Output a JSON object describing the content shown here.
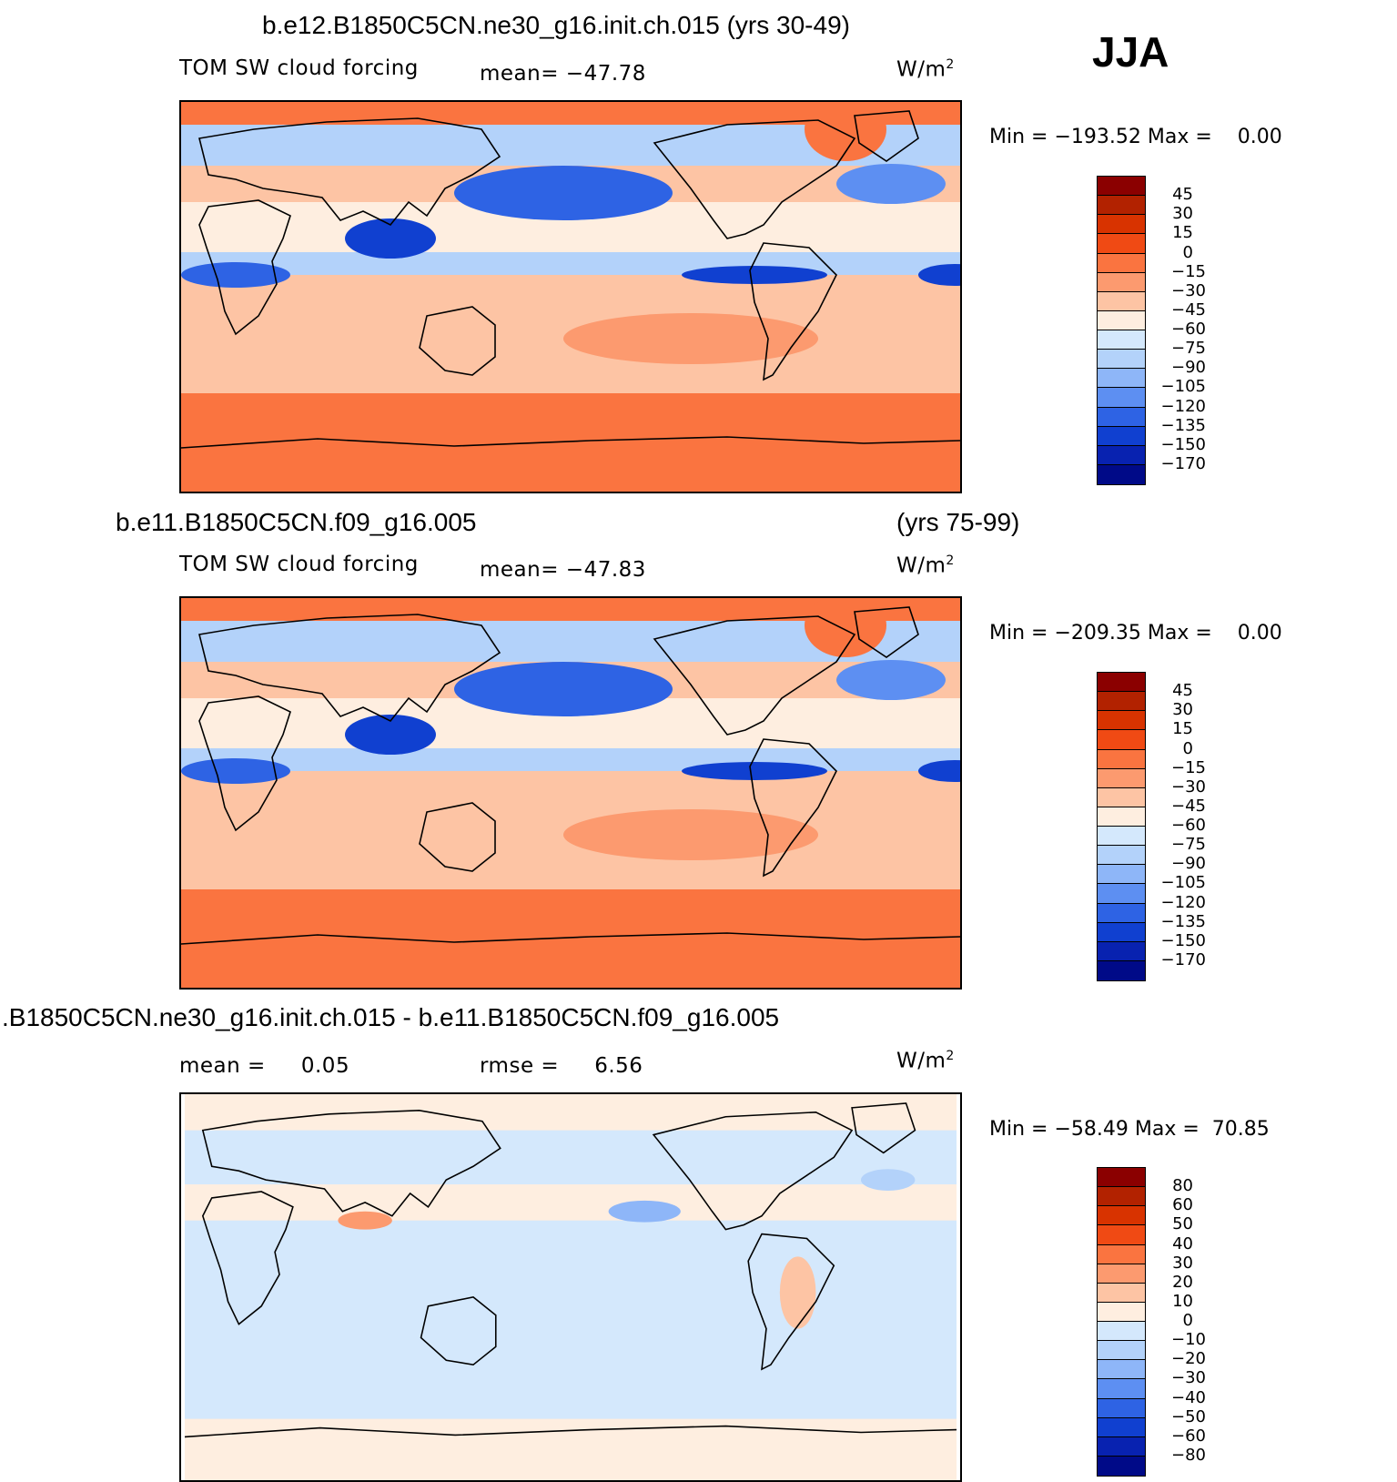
{
  "season": "JJA",
  "panels": [
    {
      "title": "b.e12.B1850C5CN.ne30_g16.init.ch.015 (yrs 30-49)",
      "title_right": "",
      "left_label": "TOM SW cloud forcing",
      "center_label": "mean= −47.78",
      "units": "W/m",
      "units_sup": "2",
      "minmax": "Min = −193.52 Max =    0.00",
      "colorbar": {
        "labels": [
          "45",
          "30",
          "15",
          "0",
          "−15",
          "−30",
          "−45",
          "−60",
          "−75",
          "−90",
          "−105",
          "−120",
          "−135",
          "−150",
          "−170"
        ],
        "colors": [
          "#8b0000",
          "#b22200",
          "#d83300",
          "#f04a14",
          "#fa7440",
          "#fc9a6f",
          "#fdc4a4",
          "#feeee0",
          "#d4e8fc",
          "#b3d2fa",
          "#8eb6f8",
          "#5d8ff2",
          "#2e63e4",
          "#1040d0",
          "#0822b0",
          "#000a88"
        ]
      },
      "map_style": "abs"
    },
    {
      "title": "b.e11.B1850C5CN.f09_g16.005",
      "title_right": "(yrs 75-99)",
      "left_label": "TOM SW cloud forcing",
      "center_label": "mean= −47.83",
      "units": "W/m",
      "units_sup": "2",
      "minmax": "Min = −209.35 Max =    0.00",
      "colorbar": {
        "labels": [
          "45",
          "30",
          "15",
          "0",
          "−15",
          "−30",
          "−45",
          "−60",
          "−75",
          "−90",
          "−105",
          "−120",
          "−135",
          "−150",
          "−170"
        ],
        "colors": [
          "#8b0000",
          "#b22200",
          "#d83300",
          "#f04a14",
          "#fa7440",
          "#fc9a6f",
          "#fdc4a4",
          "#feeee0",
          "#d4e8fc",
          "#b3d2fa",
          "#8eb6f8",
          "#5d8ff2",
          "#2e63e4",
          "#1040d0",
          "#0822b0",
          "#000a88"
        ]
      },
      "map_style": "abs"
    },
    {
      "title": ".B1850C5CN.ne30_g16.init.ch.015 - b.e11.B1850C5CN.f09_g16.005",
      "title_right": "",
      "left_label": "mean =     0.05",
      "center_label": "rmse =     6.56",
      "units": "W/m",
      "units_sup": "2",
      "minmax": "Min = −58.49 Max =  70.85",
      "colorbar": {
        "labels": [
          "80",
          "60",
          "50",
          "40",
          "30",
          "20",
          "10",
          "0",
          "−10",
          "−20",
          "−30",
          "−40",
          "−50",
          "−60",
          "−80"
        ],
        "colors": [
          "#8b0000",
          "#b22200",
          "#d83300",
          "#f04a14",
          "#fa7440",
          "#fc9a6f",
          "#fdc4a4",
          "#feeee0",
          "#d4e8fc",
          "#b3d2fa",
          "#8eb6f8",
          "#5d8ff2",
          "#2e63e4",
          "#1040d0",
          "#0822b0",
          "#000a88"
        ]
      },
      "map_style": "diff"
    }
  ]
}
